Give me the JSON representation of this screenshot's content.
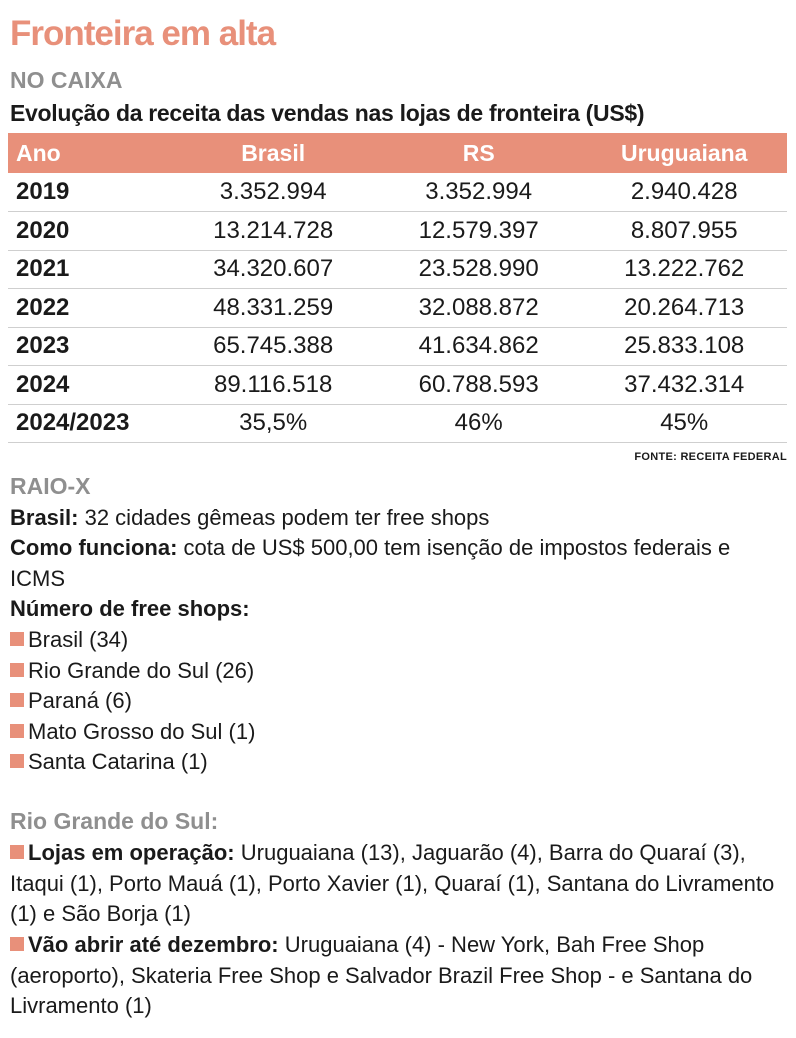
{
  "title": "Fronteira em alta",
  "no_caixa": {
    "heading": "NO CAIXA",
    "subtitle": "Evolução da receita das vendas nas lojas de fronteira (US$)",
    "columns": [
      "Ano",
      "Brasil",
      "RS",
      "Uruguaiana"
    ],
    "rows": [
      [
        "2019",
        "3.352.994",
        "3.352.994",
        "2.940.428"
      ],
      [
        "2020",
        "13.214.728",
        "12.579.397",
        "8.807.955"
      ],
      [
        "2021",
        "34.320.607",
        "23.528.990",
        "13.222.762"
      ],
      [
        "2022",
        "48.331.259",
        "32.088.872",
        "20.264.713"
      ],
      [
        "2023",
        "65.745.388",
        "41.634.862",
        "25.833.108"
      ],
      [
        "2024",
        "89.116.518",
        "60.788.593",
        "37.432.314"
      ],
      [
        "2024/2023",
        "35,5%",
        "46%",
        "45%"
      ]
    ],
    "source": "FONTE: RECEITA FEDERAL"
  },
  "raio_x": {
    "heading": "RAIO-X",
    "brasil_label": "Brasil:",
    "brasil_text": " 32 cidades gêmeas podem ter free shops",
    "como_label": "Como funciona:",
    "como_text": " cota de US$ 500,00 tem isenção de impostos federais e ICMS",
    "numero_label": "Número de free shops:",
    "free_shops": [
      "Brasil (34)",
      "Rio Grande do Sul (26)",
      "Paraná (6)",
      "Mato Grosso do Sul (1)",
      "Santa Catarina (1)"
    ]
  },
  "rio_grande": {
    "heading": "Rio Grande do Sul:",
    "lojas_label": "Lojas em operação:",
    "lojas_text": " Uruguaiana (13), Jaguarão (4), Barra do Quaraí (3), Itaqui (1), Porto Mauá (1), Porto Xavier (1), Quaraí (1), Santana do Livramento (1) e São Borja (1)",
    "abrir_label": "Vão abrir até dezembro:",
    "abrir_text": " Uruguaiana (4) - New York, Bah Free Shop (aeroporto), Skateria Free Shop e Salvador Brazil Free Shop - e Santana do Livramento (1)"
  },
  "colors": {
    "accent": "#e8907a",
    "heading_gray": "#8f8f8f",
    "text": "#1a1a1a"
  }
}
